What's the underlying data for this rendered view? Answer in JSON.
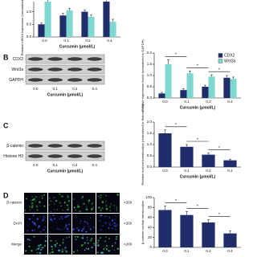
{
  "panel_a": {
    "chart": {
      "type": "bar",
      "ylabel": "Relative mRNA expression (normalized to GAPDH)",
      "xlabel": "Curcumin (μmol/L)",
      "categories": [
        "0.0",
        "0.1",
        "0.2",
        "0.4"
      ],
      "series": [
        {
          "name": "CDX2",
          "color": "#1f2d6b",
          "values": [
            0.5,
            0.85,
            1.0,
            1.4
          ],
          "errors": [
            0.05,
            0.08,
            0.06,
            0.1
          ]
        },
        {
          "name": "Wnt3a",
          "color": "#7fd8d0",
          "values": [
            1.4,
            1.05,
            0.8,
            0.6
          ],
          "errors": [
            0.1,
            0.08,
            0.07,
            0.1
          ]
        }
      ],
      "ylim": [
        0,
        1.4
      ],
      "yticks": [
        {
          "value": 0,
          "label": "0.0"
        },
        0.5,
        {
          "value": 1,
          "label": "1.0"
        }
      ]
    }
  },
  "panel_b": {
    "label": "B",
    "blot": {
      "rows": [
        "CDX2",
        "Wnt3a",
        "GAPDH"
      ],
      "lanes": [
        "0.0",
        "0.1",
        "0.2",
        "0.4"
      ],
      "xlabel": "Curcumin (μmol/L)"
    },
    "chart": {
      "type": "bar",
      "ylabel": "Relative expression levels (normalized to GAPDH)",
      "xlabel": "Curcumin (μmol/L)",
      "categories": [
        "0.0",
        "0.1",
        "0.2",
        "0.4"
      ],
      "series": [
        {
          "name": "CDX2",
          "color": "#1f2d6b",
          "values": [
            0.2,
            0.35,
            0.5,
            0.9
          ],
          "errors": [
            0.05,
            0.06,
            0.07,
            0.1
          ]
        },
        {
          "name": "Wnt3a",
          "color": "#7fd8d0",
          "values": [
            1.5,
            1.1,
            0.95,
            0.85
          ],
          "errors": [
            0.2,
            0.1,
            0.08,
            0.08
          ]
        }
      ],
      "ylim": [
        0,
        2
      ],
      "yticks": [
        {
          "value": 0,
          "label": "0.0"
        },
        0.5,
        {
          "value": 1,
          "label": "1.0"
        },
        1.5,
        {
          "value": 2,
          "label": "2.0"
        }
      ],
      "legend": "top-right",
      "annotations": [
        "*",
        "*",
        "*"
      ]
    }
  },
  "panel_c": {
    "label": "C",
    "blot": {
      "rows": [
        "β-catenin",
        "Histone H3"
      ],
      "lanes": [
        "0.0",
        "0.1",
        "0.2",
        "0.4"
      ],
      "xlabel": "Curcumin (μmol/L)"
    },
    "chart": {
      "type": "bar",
      "ylabel": "Relative nuclear translocation (normalized to Histone H3)",
      "xlabel": "Curcumin (μmol/L)",
      "categories": [
        "0.0",
        "0.1",
        "0.2",
        "0.4"
      ],
      "series": [
        {
          "name": "β-catenin",
          "color": "#1f2d6b",
          "values": [
            1.5,
            0.9,
            0.55,
            0.3
          ],
          "errors": [
            0.15,
            0.1,
            0.07,
            0.05
          ]
        }
      ],
      "ylim": [
        0,
        2
      ],
      "yticks": [
        {
          "value": 0,
          "label": "0.0"
        },
        0.5,
        {
          "value": 1,
          "label": "1.0"
        },
        1.5,
        {
          "value": 2,
          "label": "2.0"
        }
      ],
      "annotations": [
        "*",
        "*",
        "*"
      ]
    }
  },
  "panel_d": {
    "label": "D",
    "images": [
      {
        "name": "β-catenin",
        "magnification": "×200"
      },
      {
        "name": "DAPI",
        "magnification": "×200"
      },
      {
        "name": "Merge",
        "magnification": "×200"
      }
    ],
    "chart": {
      "type": "bar",
      "ylabel": "β-catenin nuclear translocation",
      "categories": [
        "0.0",
        "0.1",
        "0.2",
        "0.4"
      ],
      "series": [
        {
          "name": "β-catenin",
          "color": "#1f2d6b",
          "values": [
            75,
            65,
            50,
            28
          ],
          "errors": [
            8,
            7,
            6,
            5
          ]
        }
      ],
      "ylim": [
        0,
        100
      ],
      "yticks": [
        0,
        20,
        40,
        60,
        80,
        100
      ],
      "annotations": [
        "*",
        "*",
        "*"
      ]
    }
  }
}
